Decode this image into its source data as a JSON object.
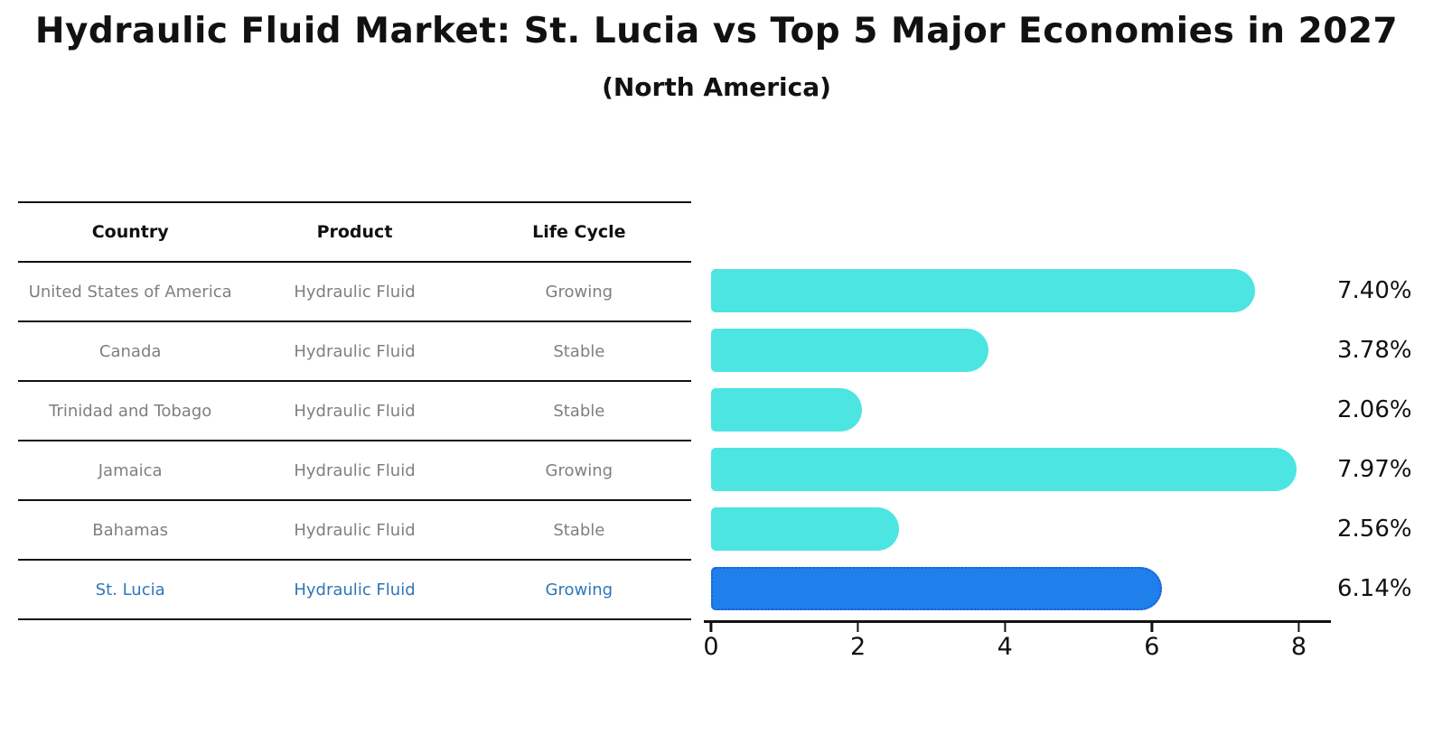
{
  "title": "Hydraulic Fluid Market: St. Lucia vs Top 5 Major Economies in 2027",
  "subtitle": "(North America)",
  "table": {
    "headers": [
      "Country",
      "Product",
      "Life Cycle"
    ],
    "rows": [
      {
        "country": "United States of America",
        "product": "Hydraulic Fluid",
        "life_cycle": "Growing",
        "highlight": false
      },
      {
        "country": "Canada",
        "product": "Hydraulic Fluid",
        "life_cycle": "Stable",
        "highlight": false
      },
      {
        "country": "Trinidad and Tobago",
        "product": "Hydraulic Fluid",
        "life_cycle": "Stable",
        "highlight": false
      },
      {
        "country": "Jamaica",
        "product": "Hydraulic Fluid",
        "life_cycle": "Growing",
        "highlight": false
      },
      {
        "country": "Bahamas",
        "product": "Hydraulic Fluid",
        "life_cycle": "Stable",
        "highlight": false
      },
      {
        "country": "St. Lucia",
        "product": "Hydraulic Fluid",
        "life_cycle": "Growing",
        "highlight": true
      }
    ]
  },
  "chart_data": {
    "type": "bar",
    "orientation": "horizontal",
    "title": "Hydraulic Fluid Market: St. Lucia vs Top 5 Major Economies in 2027 (North America)",
    "categories": [
      "United States of America",
      "Canada",
      "Trinidad and Tobago",
      "Jamaica",
      "Bahamas",
      "St. Lucia"
    ],
    "values": [
      7.4,
      3.78,
      2.06,
      7.97,
      2.56,
      6.14
    ],
    "value_labels": [
      "7.40%",
      "3.78%",
      "2.06%",
      "7.97%",
      "2.56%",
      "6.14%"
    ],
    "unit": "%",
    "xlim": [
      0,
      8.4
    ],
    "xticks": [
      0,
      2,
      4,
      6,
      8
    ],
    "grid": false,
    "legend": false,
    "highlight_index": 5
  },
  "colors": {
    "bar": "#4ce5e2",
    "highlight_bar": "#1f7feb",
    "highlight_border": "#1b5ed2",
    "highlight_text": "#2e76b6",
    "muted_text": "#7f7f7f",
    "axis": "#111111"
  }
}
